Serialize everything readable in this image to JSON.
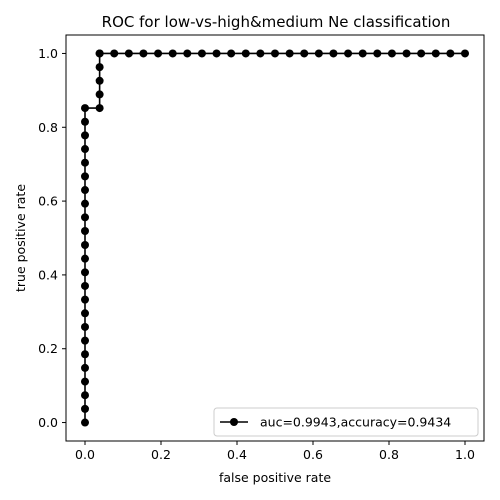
{
  "chart_data": {
    "type": "line",
    "title": "ROC for low-vs-high&medium Ne classification",
    "xlabel": "false positive rate",
    "ylabel": "true positive rate",
    "xlim": [
      -0.05,
      1.05
    ],
    "ylim": [
      -0.05,
      1.05
    ],
    "xticks": [
      0.0,
      0.2,
      0.4,
      0.6,
      0.8,
      1.0
    ],
    "yticks": [
      0.0,
      0.2,
      0.4,
      0.6,
      0.8,
      1.0
    ],
    "xtick_labels": [
      "0.0",
      "0.2",
      "0.4",
      "0.6",
      "0.8",
      "1.0"
    ],
    "ytick_labels": [
      "0.0",
      "0.2",
      "0.4",
      "0.6",
      "0.8",
      "1.0"
    ],
    "grid": false,
    "legend_position": "lower-right",
    "color": "#000000",
    "series": [
      {
        "name": "auc=0.9943,accuracy=0.9434",
        "marker": "circle",
        "x": [
          0,
          0,
          0,
          0,
          0,
          0,
          0,
          0,
          0,
          0,
          0,
          0,
          0,
          0,
          0,
          0,
          0,
          0,
          0,
          0,
          0,
          0,
          0,
          0,
          0.0385,
          0.0385,
          0.0385,
          0.0385,
          0.0385,
          0.0385,
          0.0769,
          0.1154,
          0.1538,
          0.1923,
          0.2308,
          0.2692,
          0.3077,
          0.3462,
          0.3846,
          0.4231,
          0.4615,
          0.5,
          0.5385,
          0.5769,
          0.6154,
          0.6538,
          0.6923,
          0.7308,
          0.7692,
          0.8077,
          0.8462,
          0.8846,
          0.9231,
          0.9615,
          1.0
        ],
        "y": [
          0.0,
          0.037,
          0.074,
          0.111,
          0.148,
          0.185,
          0.222,
          0.259,
          0.296,
          0.333,
          0.37,
          0.407,
          0.444,
          0.481,
          0.519,
          0.556,
          0.593,
          0.63,
          0.667,
          0.704,
          0.741,
          0.778,
          0.815,
          0.852,
          0.852,
          0.889,
          0.926,
          0.963,
          1.0,
          1.0,
          1.0,
          1.0,
          1.0,
          1.0,
          1.0,
          1.0,
          1.0,
          1.0,
          1.0,
          1.0,
          1.0,
          1.0,
          1.0,
          1.0,
          1.0,
          1.0,
          1.0,
          1.0,
          1.0,
          1.0,
          1.0,
          1.0,
          1.0,
          1.0,
          1.0
        ]
      }
    ]
  }
}
